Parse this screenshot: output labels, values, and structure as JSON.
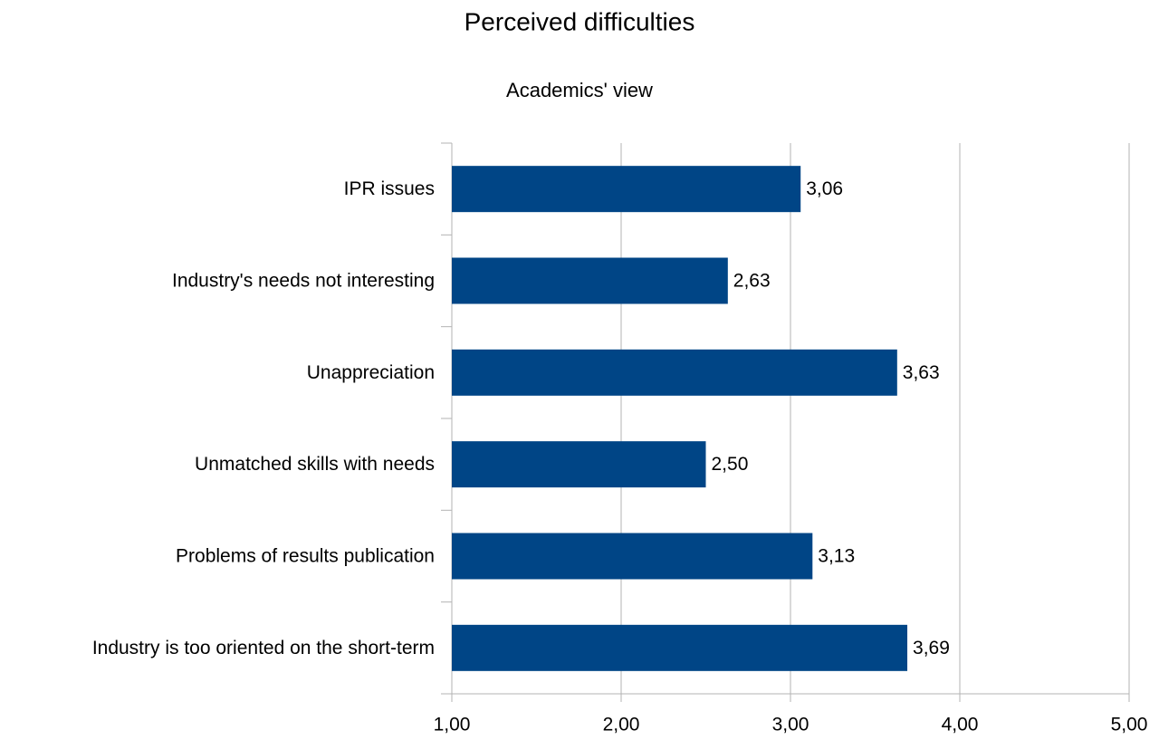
{
  "chart_data": {
    "type": "hbar",
    "title": "Perceived difficulties",
    "subtitle": "Academics' view",
    "categories": [
      "IPR issues",
      "Industry's needs not interesting",
      "Unappreciation",
      "Unmatched skills with needs",
      "Problems of results publication",
      "Industry is too oriented on the short-term"
    ],
    "values": [
      3.06,
      2.63,
      3.63,
      2.5,
      3.13,
      3.69
    ],
    "value_labels": [
      "3,06",
      "2,63",
      "3,63",
      "2,50",
      "3,13",
      "3,69"
    ],
    "color": "#004586",
    "xlim": [
      1,
      5
    ],
    "xticks": [
      {
        "value": 1,
        "label": "1,00"
      },
      {
        "value": 2,
        "label": "2,00"
      },
      {
        "value": 3,
        "label": "3,00"
      },
      {
        "value": 4,
        "label": "4,00"
      },
      {
        "value": 5,
        "label": "5,00"
      }
    ],
    "grid": true
  }
}
